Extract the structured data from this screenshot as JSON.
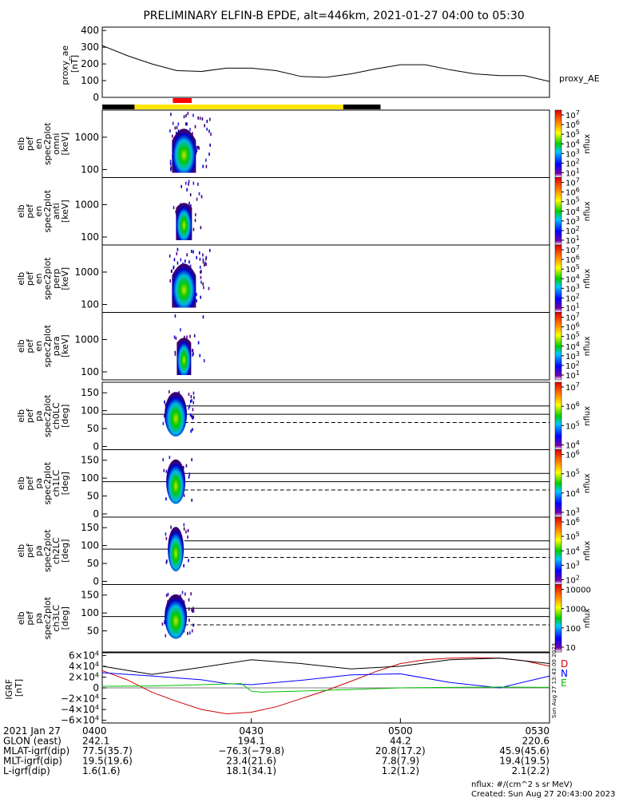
{
  "title": "PRELIMINARY ELFIN-B EPDE, alt=446km, 2021-01-27 04:00 to 05:30",
  "proxy_panel": {
    "ylabel_lines": [
      "proxy_ae",
      "[nT]"
    ],
    "yticks": [
      "400",
      "300",
      "200",
      "100",
      "0"
    ],
    "legend": "proxy_AE",
    "series": {
      "x": [
        0,
        5,
        10,
        15,
        20,
        25,
        30,
        35,
        40,
        45,
        50,
        55,
        60,
        65,
        70,
        75,
        80,
        85,
        90
      ],
      "y": [
        310,
        250,
        200,
        160,
        155,
        175,
        175,
        160,
        125,
        120,
        140,
        170,
        195,
        195,
        165,
        140,
        130,
        130,
        95
      ],
      "ylim": [
        0,
        420
      ]
    }
  },
  "status_bar": {
    "segments": [
      {
        "from": 0,
        "to": 6.5,
        "color": "#000000"
      },
      {
        "from": 6.5,
        "to": 48.5,
        "color": "#FFE600"
      },
      {
        "from": 48.5,
        "to": 56,
        "color": "#000000"
      }
    ],
    "science_zone": {
      "from": 14.2,
      "to": 18,
      "color": "#FF0000"
    }
  },
  "spectrogram_panels": [
    {
      "ylabel_lines": [
        "elb",
        "pef",
        "en",
        "spec2plot",
        "omni",
        "[keV]"
      ],
      "yticks": [
        "1000",
        "100"
      ],
      "cbar_ticks": [
        "10^7",
        "10^6",
        "10^5",
        "10^4",
        "10^3",
        "10^2",
        "10^1"
      ],
      "cbar_label": "nflux"
    },
    {
      "ylabel_lines": [
        "elb",
        "pef",
        "en",
        "spec2plot",
        "anti",
        "[keV]"
      ],
      "yticks": [
        "1000",
        "100"
      ],
      "cbar_ticks": [
        "10^7",
        "10^6",
        "10^5",
        "10^4",
        "10^3",
        "10^2",
        "10^1"
      ],
      "cbar_label": "nflux"
    },
    {
      "ylabel_lines": [
        "elb",
        "pef",
        "en",
        "spec2plot",
        "perp",
        "[keV]"
      ],
      "yticks": [
        "1000",
        "100"
      ],
      "cbar_ticks": [
        "10^7",
        "10^6",
        "10^5",
        "10^4",
        "10^3",
        "10^2",
        "10^1"
      ],
      "cbar_label": "nflux"
    },
    {
      "ylabel_lines": [
        "elb",
        "pef",
        "en",
        "spec2plot",
        "para",
        "[keV]"
      ],
      "yticks": [
        "1000",
        "100"
      ],
      "cbar_ticks": [
        "10^7",
        "10^6",
        "10^5",
        "10^4",
        "10^3",
        "10^2",
        "10^1"
      ],
      "cbar_label": "nflux"
    }
  ],
  "pitch_angle_panels": [
    {
      "ylabel_lines": [
        "elb",
        "pef",
        "pa",
        "spec2plot",
        "ch0LC",
        "[deg]"
      ],
      "yticks": [
        "150",
        "100",
        "50",
        "0"
      ],
      "cbar_ticks": [
        "10^7",
        "10^6",
        "10^5",
        "10^4"
      ],
      "cbar_label": "nflux"
    },
    {
      "ylabel_lines": [
        "elb",
        "pef",
        "pa",
        "spec2plot",
        "ch1LC",
        "[deg]"
      ],
      "yticks": [
        "150",
        "100",
        "50",
        "0"
      ],
      "cbar_ticks": [
        "10^6",
        "10^5",
        "10^4",
        "10^3"
      ],
      "cbar_label": "nflux"
    },
    {
      "ylabel_lines": [
        "elb",
        "pef",
        "pa",
        "spec2plot",
        "ch2LC",
        "[deg]"
      ],
      "yticks": [
        "150",
        "100",
        "50",
        "0"
      ],
      "cbar_ticks": [
        "10^6",
        "10^5",
        "10^4",
        "10^3",
        "10^2"
      ],
      "cbar_label": "nflux"
    },
    {
      "ylabel_lines": [
        "elb",
        "pef",
        "pa",
        "spec2plot",
        "ch3LC",
        "[deg]"
      ],
      "yticks": [
        "150",
        "100",
        "50"
      ],
      "cbar_ticks": [
        "10000",
        "1000",
        "100",
        "10"
      ],
      "cbar_label": "nflux"
    }
  ],
  "igrf_panel": {
    "ylabel_lines": [
      "IGRF",
      "[nT]"
    ],
    "yticks": [
      "6×10^4",
      "4×10^4",
      "2×10^4",
      "0",
      "−2×10^4",
      "−4×10^4",
      "−6×10^4"
    ],
    "legend": [
      {
        "label": "D",
        "color": "#D00000"
      },
      {
        "label": "N",
        "color": "#0000FF"
      },
      {
        "label": "E",
        "color": "#00C000"
      }
    ],
    "side_text": "Sun Aug 27 13:43:00 2023",
    "series": [
      {
        "name": "D",
        "color": "#D00000",
        "x": [
          0,
          5,
          10,
          15,
          20,
          25,
          30,
          35,
          40,
          45,
          50,
          55,
          60,
          65,
          70,
          75,
          80,
          85,
          90
        ],
        "y": [
          32000,
          15000,
          -8000,
          -25000,
          -40000,
          -48000,
          -45000,
          -35000,
          -20000,
          -5000,
          12000,
          30000,
          45000,
          52000,
          55000,
          56000,
          55000,
          50000,
          40000
        ]
      },
      {
        "name": "N",
        "color": "#0000FF",
        "x": [
          0,
          10,
          20,
          25,
          30,
          40,
          50,
          60,
          70,
          80,
          90
        ],
        "y": [
          28000,
          22000,
          15000,
          8000,
          6000,
          14000,
          24000,
          26000,
          10000,
          0,
          22000
        ]
      },
      {
        "name": "E",
        "color": "#00C000",
        "x": [
          0,
          10,
          20,
          28,
          30,
          32,
          40,
          50,
          60,
          70,
          80,
          90
        ],
        "y": [
          3000,
          3500,
          6000,
          8000,
          -6000,
          -8000,
          -6000,
          -3000,
          0,
          1000,
          1500,
          1000
        ]
      },
      {
        "name": "",
        "color": "#000000",
        "x": [
          0,
          10,
          20,
          30,
          40,
          50,
          60,
          70,
          80,
          90
        ],
        "y": [
          40000,
          25000,
          38000,
          52000,
          45000,
          35000,
          40000,
          52000,
          55000,
          45000
        ]
      }
    ]
  },
  "footer": {
    "rows": [
      {
        "label": "2021 Jan 27",
        "values": [
          "0400",
          "0430",
          "0500",
          "0530"
        ]
      },
      {
        "label": "GLON (east)",
        "values": [
          "242.1",
          "194.1",
          "44.2",
          "220.6"
        ]
      },
      {
        "label": "MLAT-igrf(dip)",
        "values": [
          "77.5(35.7)",
          "−76.3(−79.8)",
          "20.8(17.2)",
          "45.9(45.6)"
        ]
      },
      {
        "label": "MLT-igrf(dip)",
        "values": [
          "19.5(19.6)",
          "23.4(21.6)",
          "7.8(7.9)",
          "19.4(19.5)"
        ]
      },
      {
        "label": "L-igrf(dip)",
        "values": [
          "1.6(1.6)",
          "18.1(34.1)",
          "1.2(1.2)",
          "2.1(2.2)"
        ]
      }
    ],
    "units_note": "nflux: #/(cm^2 s sr MeV)",
    "created": "Created: Sun Aug 27 20:43:00 2023"
  },
  "time_axis": {
    "start_min": 0,
    "end_min": 90
  },
  "colors": {
    "background": "#FFFFFF",
    "axes": "#000000",
    "trace": "#000000"
  }
}
